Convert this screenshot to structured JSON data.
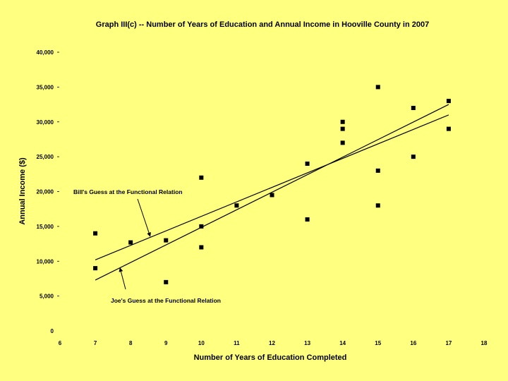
{
  "chart_data": {
    "type": "scatter",
    "title": "Graph III(c) -- Number of Years of Education and Annual Income in Hooville County in 2007",
    "xlabel": "Number of Years of Education Completed",
    "ylabel": "Annual Income ($)",
    "xlim": [
      6,
      18
    ],
    "ylim": [
      0,
      40000
    ],
    "x_ticks": [
      6,
      7,
      8,
      9,
      10,
      11,
      12,
      13,
      14,
      15,
      16,
      17,
      18
    ],
    "y_ticks": [
      0,
      5000,
      10000,
      15000,
      20000,
      25000,
      30000,
      35000,
      40000
    ],
    "y_tick_labels": [
      "0",
      "5,000",
      "10,000",
      "15,000",
      "20,000",
      "25,000",
      "30,000",
      "35,000",
      "40,000"
    ],
    "grid": false,
    "points": [
      {
        "x": 7,
        "y": 14000
      },
      {
        "x": 7,
        "y": 9000
      },
      {
        "x": 8,
        "y": 12700
      },
      {
        "x": 9,
        "y": 13000
      },
      {
        "x": 9,
        "y": 7000
      },
      {
        "x": 10,
        "y": 22000
      },
      {
        "x": 10,
        "y": 15000
      },
      {
        "x": 10,
        "y": 12000
      },
      {
        "x": 11,
        "y": 18000
      },
      {
        "x": 12,
        "y": 19500
      },
      {
        "x": 13,
        "y": 24000
      },
      {
        "x": 13,
        "y": 16000
      },
      {
        "x": 14,
        "y": 30000
      },
      {
        "x": 14,
        "y": 29000
      },
      {
        "x": 14,
        "y": 27000
      },
      {
        "x": 15,
        "y": 35000
      },
      {
        "x": 15,
        "y": 23000
      },
      {
        "x": 15,
        "y": 18000
      },
      {
        "x": 16,
        "y": 32000
      },
      {
        "x": 16,
        "y": 25000
      },
      {
        "x": 17,
        "y": 33000
      },
      {
        "x": 17,
        "y": 29000
      }
    ],
    "lines": [
      {
        "label": "Bill's Guess at the Functional Relation",
        "x": [
          7,
          17
        ],
        "y": [
          10200,
          31000
        ]
      },
      {
        "label": "Joe's Guess at the Functional Relation",
        "x": [
          7,
          17
        ],
        "y": [
          7300,
          32500
        ]
      }
    ],
    "annotations": [
      {
        "text": "Bill's Guess at the Functional Relation",
        "target_x": 8.55,
        "target_y": 13600
      },
      {
        "text": "Joe's Guess at the Functional Relation",
        "target_x": 7.7,
        "target_y": 9000
      }
    ]
  }
}
